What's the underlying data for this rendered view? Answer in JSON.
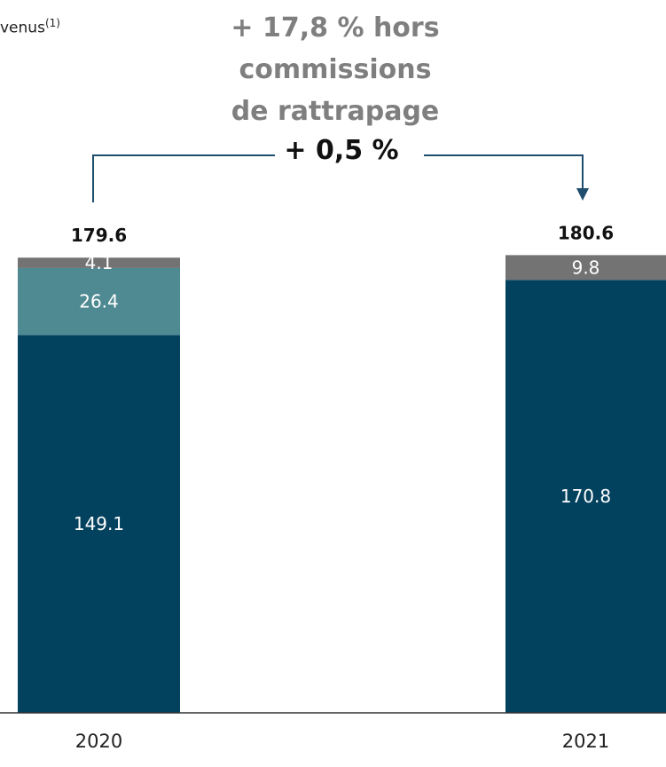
{
  "chart_data": {
    "type": "stacked_bar",
    "categories": [
      "2020",
      "2021"
    ],
    "series": [
      {
        "color": "#03425f",
        "values": [
          149.1,
          170.8
        ]
      },
      {
        "color": "#4f8a93",
        "values": [
          26.4,
          null
        ]
      },
      {
        "color": "#737373",
        "values": [
          4.1,
          9.8
        ]
      }
    ],
    "totals": [
      179.6,
      180.6
    ],
    "ylim": [
      0,
      200
    ],
    "annotation": "+ 17,8 % hors commissions de rattrapage",
    "change_label": "+ 0,5 %",
    "legend_fragment": "venus",
    "legend_note": "(1)",
    "bracket_color": "#1f4e6e"
  }
}
